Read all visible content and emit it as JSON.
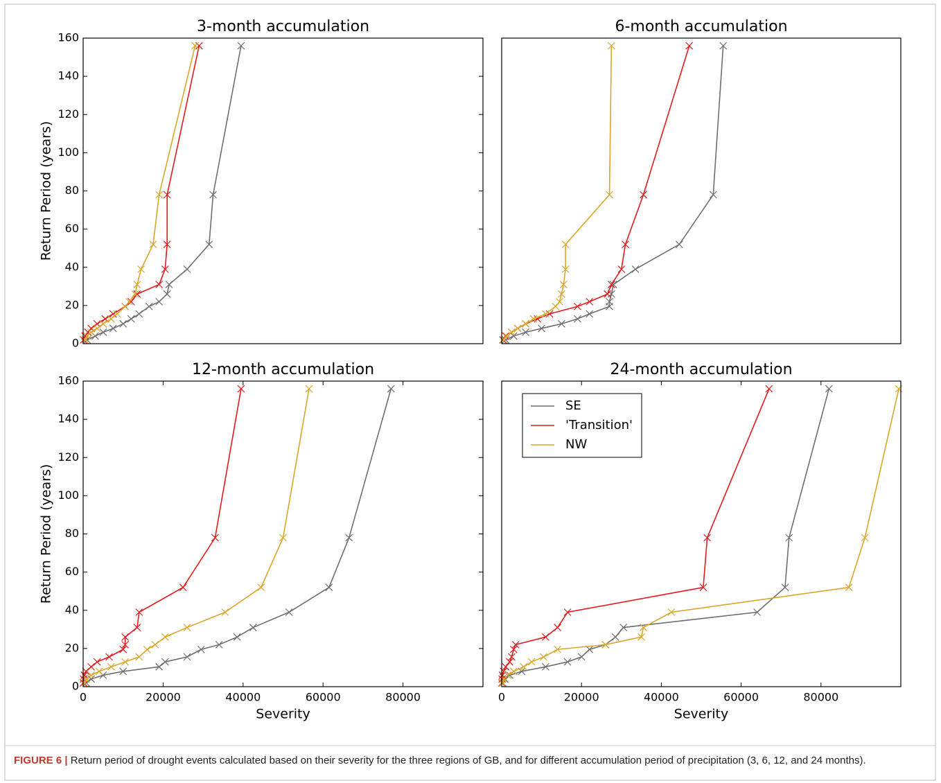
{
  "chart_data": [
    {
      "type": "line",
      "title": "3-month accumulation",
      "ylabel": "Return Period (years)",
      "xlim": [
        0,
        100000
      ],
      "ylim": [
        0,
        160
      ],
      "yticks": [
        0,
        20,
        40,
        60,
        80,
        100,
        120,
        140,
        160
      ],
      "series": [
        {
          "color": "#6e6e6e",
          "x": [
            39500,
            32500,
            31500,
            26000,
            21500,
            21000,
            19000,
            16500,
            14000,
            12000,
            10000,
            7500,
            5000,
            3000,
            1000
          ],
          "values": [
            156,
            78,
            52,
            39,
            31,
            26,
            22,
            19.5,
            15.6,
            13,
            10.4,
            8,
            6,
            4,
            2
          ]
        },
        {
          "color": "#e31a1c",
          "x": [
            29000,
            21000,
            21000,
            20500,
            19000,
            13500,
            12000,
            10500,
            7500,
            5500,
            3500,
            2000,
            1200,
            500,
            100
          ],
          "values": [
            156,
            78,
            52,
            39,
            31,
            26,
            22,
            19.5,
            15.6,
            13,
            10.4,
            8,
            6,
            4,
            2
          ]
        },
        {
          "color": "#dba628",
          "x": [
            28000,
            19000,
            17500,
            14500,
            13500,
            13000,
            11500,
            10500,
            8500,
            7000,
            5000,
            3500,
            2000,
            1000,
            500
          ],
          "values": [
            156,
            78,
            52,
            39,
            31,
            26,
            22,
            19.5,
            15.6,
            13,
            10.4,
            8,
            6,
            4,
            2
          ]
        }
      ]
    },
    {
      "type": "line",
      "title": "6-month accumulation",
      "xlim": [
        0,
        100000
      ],
      "ylim": [
        0,
        160
      ],
      "series": [
        {
          "color": "#6e6e6e",
          "x": [
            55500,
            53000,
            44500,
            33500,
            28000,
            27500,
            27000,
            27000,
            22000,
            19000,
            15000,
            10000,
            6000,
            3000,
            1000
          ],
          "values": [
            156,
            78,
            52,
            39,
            31,
            26,
            22,
            19.5,
            15.6,
            13,
            10.4,
            8,
            6,
            4,
            2
          ]
        },
        {
          "color": "#e31a1c",
          "x": [
            47000,
            35500,
            31000,
            30000,
            27500,
            26500,
            22000,
            19000,
            12000,
            9000,
            6000,
            4000,
            2500,
            1000,
            300
          ],
          "values": [
            156,
            78,
            52,
            39,
            31,
            26,
            22,
            19.5,
            15.6,
            13,
            10.4,
            8,
            6,
            4,
            2
          ]
        },
        {
          "color": "#dba628",
          "x": [
            27500,
            27000,
            16000,
            16000,
            15500,
            15000,
            14500,
            13500,
            11000,
            8000,
            6000,
            4000,
            2500,
            1200,
            500
          ],
          "values": [
            156,
            78,
            52,
            39,
            31,
            26,
            22,
            19.5,
            15.6,
            13,
            10.4,
            8,
            6,
            4,
            2
          ]
        }
      ]
    },
    {
      "type": "line",
      "title": "12-month accumulation",
      "xlabel": "Severity",
      "ylabel": "Return Period (years)",
      "xlim": [
        0,
        100000
      ],
      "ylim": [
        0,
        160
      ],
      "xticks": [
        0,
        20000,
        40000,
        60000,
        80000
      ],
      "yticks": [
        0,
        20,
        40,
        60,
        80,
        100,
        120,
        140,
        160
      ],
      "series": [
        {
          "color": "#6e6e6e",
          "x": [
            77000,
            66500,
            61500,
            51500,
            42500,
            38500,
            34000,
            29500,
            26000,
            20500,
            19000,
            10000,
            5000,
            2000,
            800
          ],
          "values": [
            156,
            78,
            52,
            39,
            31,
            26,
            22,
            19.5,
            15.6,
            13,
            10.4,
            8,
            6,
            4,
            2
          ]
        },
        {
          "color": "#e31a1c",
          "x": [
            39500,
            33000,
            25000,
            14000,
            13500,
            10500,
            10500,
            10000,
            6500,
            3500,
            2000,
            700,
            300,
            100,
            50
          ],
          "values": [
            156,
            78,
            52,
            39,
            31,
            26,
            22,
            19.5,
            15.6,
            13,
            10.4,
            8,
            6,
            4,
            2
          ]
        },
        {
          "color": "#dba628",
          "x": [
            56500,
            50000,
            44500,
            35500,
            26000,
            20500,
            18000,
            16000,
            14000,
            10500,
            7000,
            4000,
            2000,
            800,
            300
          ],
          "values": [
            156,
            78,
            52,
            39,
            31,
            26,
            22,
            19.5,
            15.6,
            13,
            10.4,
            8,
            6,
            4,
            2
          ]
        }
      ]
    },
    {
      "type": "line",
      "title": "24-month accumulation",
      "xlabel": "Severity",
      "legend": "upper left",
      "xlim": [
        0,
        100000
      ],
      "ylim": [
        0,
        160
      ],
      "xticks": [
        0,
        20000,
        40000,
        60000,
        80000
      ],
      "series": [
        {
          "name": "SE",
          "color": "#6e6e6e",
          "x": [
            82000,
            72000,
            71000,
            64000,
            30500,
            28500,
            26000,
            22000,
            20000,
            16500,
            11000,
            5000,
            2000,
            800,
            300
          ],
          "values": [
            156,
            78,
            52,
            39,
            31,
            26,
            22,
            19.5,
            15.6,
            13,
            10.4,
            8,
            6,
            4,
            2
          ]
        },
        {
          "name": "'Transition'",
          "color": "#e31a1c",
          "x": [
            67000,
            51500,
            50500,
            16500,
            14000,
            11000,
            3500,
            3000,
            2500,
            2000,
            1000,
            500,
            200,
            100,
            50
          ],
          "values": [
            156,
            78,
            52,
            39,
            31,
            26,
            22,
            19.5,
            15.6,
            13,
            10.4,
            8,
            6,
            4,
            2
          ]
        },
        {
          "name": "NW",
          "color": "#dba628",
          "x": [
            99500,
            91000,
            87000,
            42500,
            35500,
            35000,
            26000,
            14000,
            10500,
            7500,
            5500,
            3000,
            1500,
            600,
            200
          ],
          "values": [
            156,
            78,
            52,
            39,
            31,
            26,
            22,
            19.5,
            15.6,
            13,
            10.4,
            8,
            6,
            4,
            2
          ]
        }
      ]
    }
  ],
  "caption": {
    "label": "FIGURE 6 |",
    "text": "Return period of drought events calculated based on their severity for the three regions of GB, and for different accumulation period of precipitation (3, 6, 12, and 24 months)."
  }
}
